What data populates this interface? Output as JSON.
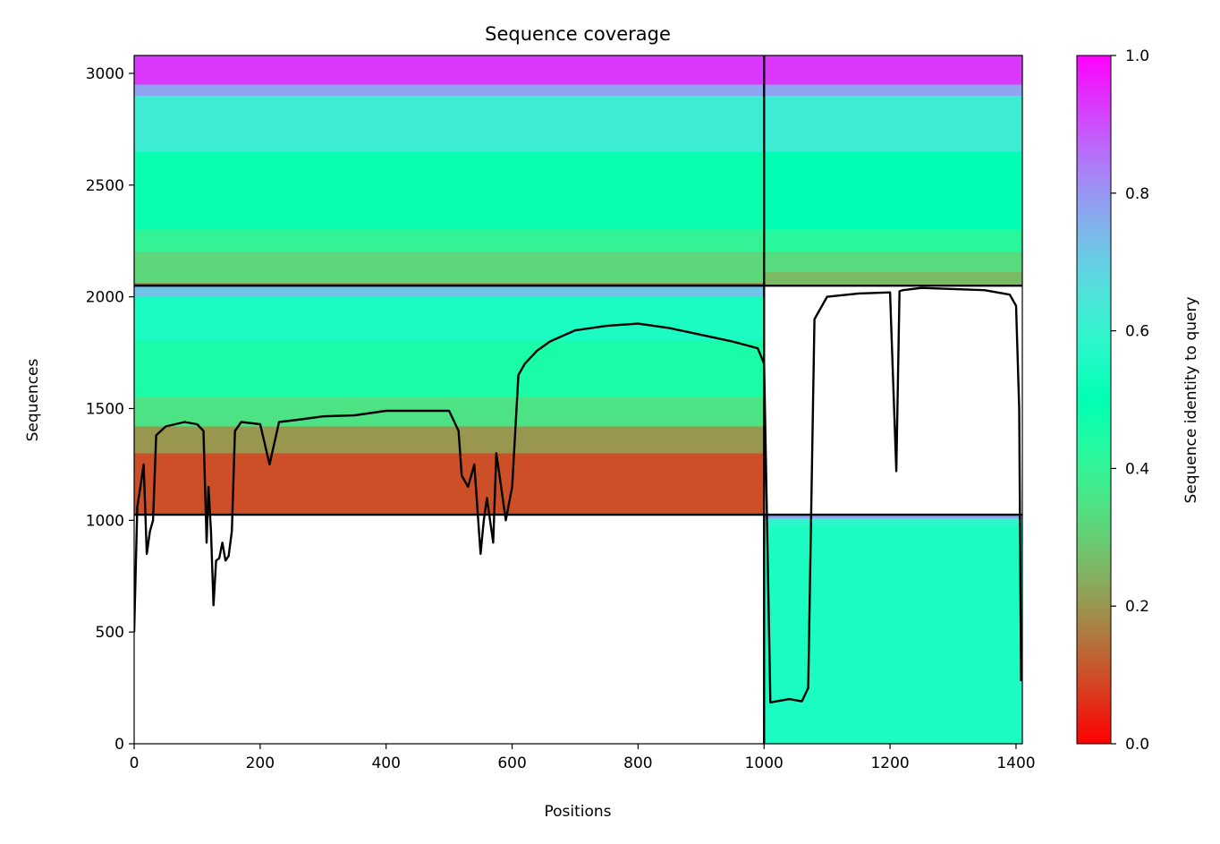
{
  "chart_data": {
    "type": "heatmap",
    "title": "Sequence coverage",
    "xlabel": "Positions",
    "ylabel": "Sequences",
    "colorbar_label": "Sequence identity to query",
    "colormap": "rainbow_r",
    "xlim": [
      0,
      1410
    ],
    "ylim": [
      0,
      3080
    ],
    "xticks": [
      0,
      200,
      400,
      600,
      800,
      1000,
      1200,
      1400
    ],
    "yticks": [
      0,
      500,
      1000,
      1500,
      2000,
      2500,
      3000
    ],
    "colorbar_range": [
      0.0,
      1.0
    ],
    "colorbar_ticks": [
      0.0,
      0.2,
      0.4,
      0.6,
      0.8,
      1.0
    ],
    "colorbar_tick_labels": [
      "0.0",
      "0.2",
      "0.4",
      "0.6",
      "0.8",
      "1.0"
    ],
    "grid": false,
    "segment_boundaries": {
      "x": [
        1000
      ],
      "y": [
        1025,
        2050
      ]
    },
    "blocks": [
      {
        "x": [
          0,
          1000
        ],
        "y": [
          2050,
          3080
        ],
        "identity_bands": [
          {
            "y": [
              2050,
              2060
            ],
            "identity": 0.1
          },
          {
            "y": [
              2060,
              2200
            ],
            "identity": 0.32
          },
          {
            "y": [
              2200,
              2300
            ],
            "identity": 0.4
          },
          {
            "y": [
              2300,
              2650
            ],
            "identity": 0.48
          },
          {
            "y": [
              2650,
              2900
            ],
            "identity": 0.62
          },
          {
            "y": [
              2900,
              2950
            ],
            "identity": 0.78
          },
          {
            "y": [
              2950,
              3080
            ],
            "identity": 0.93
          }
        ]
      },
      {
        "x": [
          1000,
          1410
        ],
        "y": [
          2050,
          3080
        ],
        "identity_bands": [
          {
            "y": [
              2050,
              2110
            ],
            "identity": 0.26
          },
          {
            "y": [
              2110,
              2200
            ],
            "identity": 0.33
          },
          {
            "y": [
              2200,
              2300
            ],
            "identity": 0.42
          },
          {
            "y": [
              2300,
              2650
            ],
            "identity": 0.5
          },
          {
            "y": [
              2650,
              2900
            ],
            "identity": 0.62
          },
          {
            "y": [
              2900,
              2950
            ],
            "identity": 0.78
          },
          {
            "y": [
              2950,
              3080
            ],
            "identity": 0.93
          }
        ]
      },
      {
        "x": [
          0,
          1000
        ],
        "y": [
          1025,
          2050
        ],
        "identity_bands": [
          {
            "y": [
              1025,
              1300
            ],
            "identity": 0.1
          },
          {
            "y": [
              1300,
              1420
            ],
            "identity": 0.2
          },
          {
            "y": [
              1420,
              1550
            ],
            "identity": 0.35
          },
          {
            "y": [
              1550,
              1800
            ],
            "identity": 0.45
          },
          {
            "y": [
              1800,
              2000
            ],
            "identity": 0.55
          },
          {
            "y": [
              2000,
              2050
            ],
            "identity": 0.72
          }
        ]
      },
      {
        "x": [
          1000,
          1410
        ],
        "y": [
          0,
          1025
        ],
        "identity_bands": [
          {
            "y": [
              0,
              980
            ],
            "identity": 0.55
          },
          {
            "y": [
              980,
              1010
            ],
            "identity": 0.6
          },
          {
            "y": [
              1010,
              1025
            ],
            "identity": 0.78
          }
        ]
      }
    ],
    "coverage_line": {
      "x": [
        0,
        5,
        10,
        15,
        20,
        25,
        30,
        35,
        50,
        80,
        100,
        110,
        115,
        118,
        122,
        126,
        130,
        135,
        140,
        145,
        150,
        155,
        160,
        170,
        200,
        215,
        230,
        260,
        300,
        350,
        400,
        450,
        500,
        515,
        520,
        530,
        540,
        550,
        555,
        560,
        570,
        575,
        580,
        590,
        600,
        610,
        620,
        640,
        660,
        700,
        750,
        800,
        850,
        900,
        950,
        990,
        1000,
        1010,
        1040,
        1060,
        1070,
        1080,
        1100,
        1150,
        1200,
        1210,
        1215,
        1220,
        1250,
        1300,
        1350,
        1390,
        1400,
        1405,
        1408
      ],
      "y": [
        500,
        1060,
        1150,
        1250,
        850,
        950,
        1000,
        1380,
        1420,
        1440,
        1430,
        1400,
        900,
        1150,
        950,
        620,
        820,
        830,
        900,
        820,
        840,
        950,
        1400,
        1440,
        1430,
        1250,
        1440,
        1450,
        1465,
        1470,
        1490,
        1490,
        1490,
        1400,
        1200,
        1150,
        1250,
        850,
        1000,
        1100,
        900,
        1300,
        1200,
        1000,
        1150,
        1650,
        1700,
        1760,
        1800,
        1850,
        1870,
        1880,
        1860,
        1830,
        1800,
        1770,
        1700,
        185,
        200,
        190,
        250,
        1900,
        2000,
        2015,
        2020,
        1220,
        2025,
        2030,
        2040,
        2035,
        2030,
        2010,
        1960,
        1500,
        280
      ]
    }
  }
}
